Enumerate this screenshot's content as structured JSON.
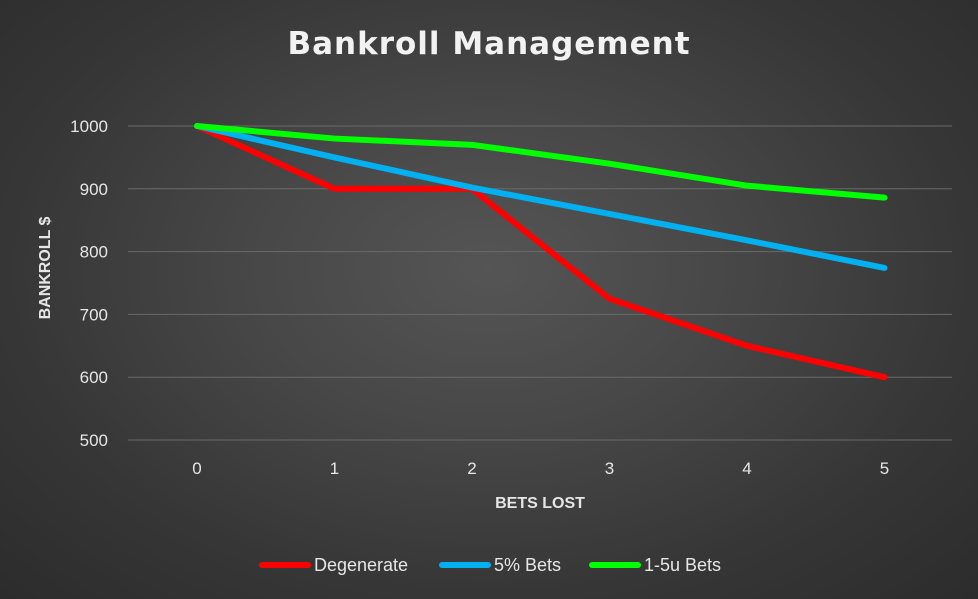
{
  "chart_data": {
    "type": "line",
    "title": "Bankroll Management",
    "xlabel": "BETS LOST",
    "ylabel": "BANKROLL $",
    "x": [
      0,
      1,
      2,
      3,
      4,
      5
    ],
    "x_tick_labels": [
      "0",
      "1",
      "2",
      "3",
      "4",
      "5"
    ],
    "y_tick_labels": [
      "1000",
      "900",
      "800",
      "700",
      "600",
      "500"
    ],
    "ylim": [
      500,
      1000
    ],
    "grid": true,
    "legend_position": "bottom",
    "series": [
      {
        "name": "Degenerate",
        "color": "#ff0000",
        "values": [
          1000,
          900,
          900,
          725,
          650,
          600
        ]
      },
      {
        "name": "5% Bets",
        "color": "#00b0f0",
        "values": [
          1000,
          950,
          902,
          860,
          818,
          774
        ]
      },
      {
        "name": "1-5u Bets",
        "color": "#00ff00",
        "values": [
          1000,
          980,
          970,
          940,
          905,
          886
        ]
      }
    ]
  }
}
